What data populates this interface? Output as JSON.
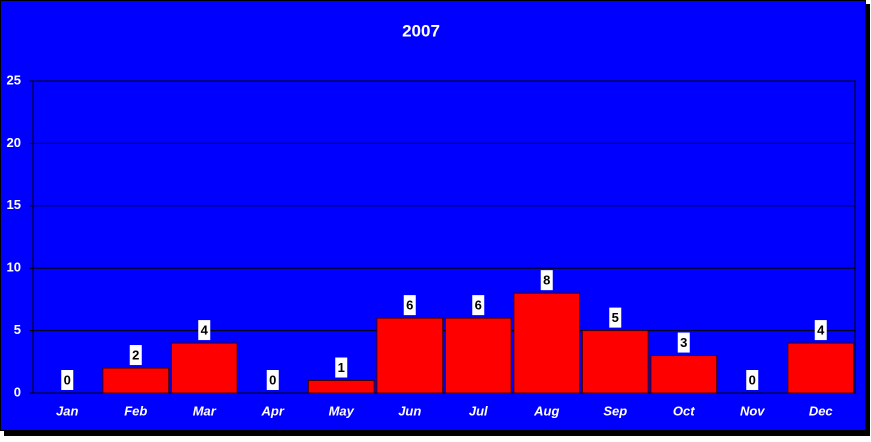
{
  "chart_data": {
    "type": "bar",
    "title": "2007",
    "categories": [
      "Jan",
      "Feb",
      "Mar",
      "Apr",
      "May",
      "Jun",
      "Jul",
      "Aug",
      "Sep",
      "Oct",
      "Nov",
      "Dec"
    ],
    "values": [
      0,
      2,
      4,
      0,
      1,
      6,
      6,
      8,
      5,
      3,
      0,
      4
    ],
    "color": "#ff0000",
    "background": "#0000ff",
    "ylim": [
      0,
      25
    ],
    "yticks": [
      0,
      5,
      10,
      15,
      20,
      25
    ],
    "grid": true
  }
}
